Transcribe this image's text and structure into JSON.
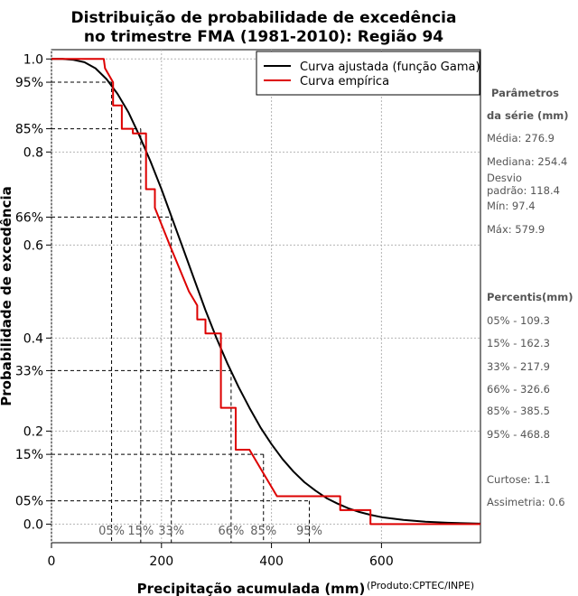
{
  "title_line1": "Distribuição de probabilidade de excedência",
  "title_line2": "no trimestre FMA (1981-2010): Região 94",
  "credit": "(Produto:CPTEC/INPE)",
  "colors": {
    "fitted": "#000000",
    "empirical": "#dd0000",
    "grid": "#b4b4b4",
    "side_text": "#555555"
  },
  "chart_data": {
    "type": "line",
    "xlabel": "Precipitação acumulada (mm)",
    "ylabel": "Probabilidade de excedência",
    "xlim": [
      0,
      780
    ],
    "ylim": [
      -0.04,
      1.02
    ],
    "x_ticks": [
      0,
      200,
      400,
      600
    ],
    "x_tick_labels": [
      "0",
      "200",
      "400",
      "600"
    ],
    "y_ticks": [
      {
        "value": 1.0,
        "label": "1.0"
      },
      {
        "value": 0.95,
        "label": "95%"
      },
      {
        "value": 0.85,
        "label": "85%"
      },
      {
        "value": 0.8,
        "label": "0.8"
      },
      {
        "value": 0.66,
        "label": "66%"
      },
      {
        "value": 0.6,
        "label": "0.6"
      },
      {
        "value": 0.4,
        "label": "0.4"
      },
      {
        "value": 0.33,
        "label": "33%"
      },
      {
        "value": 0.2,
        "label": "0.2"
      },
      {
        "value": 0.15,
        "label": "15%"
      },
      {
        "value": 0.05,
        "label": "05%"
      },
      {
        "value": 0.0,
        "label": "0.0"
      }
    ],
    "grid_x": [
      0,
      200,
      400,
      600
    ],
    "grid_y": [
      0.0,
      0.2,
      0.4,
      0.6,
      0.8,
      1.0
    ],
    "legend": {
      "position": "top-right",
      "entries": [
        {
          "label": "Curva ajustada (função Gama)",
          "series": "fitted"
        },
        {
          "label": "Curva empírica",
          "series": "empirical"
        }
      ]
    },
    "series": [
      {
        "name": "Curva ajustada (função Gama)",
        "key": "fitted",
        "x": [
          0,
          20,
          40,
          60,
          80,
          100,
          120,
          140,
          160,
          180,
          200,
          220,
          240,
          260,
          280,
          300,
          320,
          340,
          360,
          380,
          400,
          420,
          440,
          460,
          480,
          500,
          520,
          540,
          560,
          580,
          600,
          640,
          680,
          720,
          780
        ],
        "y": [
          1.0,
          1.0,
          0.998,
          0.993,
          0.98,
          0.957,
          0.925,
          0.885,
          0.835,
          0.78,
          0.72,
          0.655,
          0.59,
          0.525,
          0.46,
          0.4,
          0.345,
          0.295,
          0.25,
          0.208,
          0.172,
          0.14,
          0.113,
          0.09,
          0.072,
          0.056,
          0.044,
          0.034,
          0.026,
          0.02,
          0.015,
          0.009,
          0.005,
          0.003,
          0.001
        ]
      },
      {
        "name": "Curva empírica",
        "key": "empirical",
        "x": [
          0,
          95,
          97.4,
          112,
          112,
          128,
          128,
          148,
          148,
          172,
          172,
          188,
          188,
          215,
          250,
          265,
          265,
          280,
          280,
          308,
          308,
          335,
          335,
          360,
          380,
          410,
          425,
          425,
          525,
          525,
          548,
          548,
          580,
          580,
          780
        ],
        "y": [
          1.0,
          1.0,
          0.98,
          0.95,
          0.9,
          0.9,
          0.85,
          0.85,
          0.84,
          0.84,
          0.72,
          0.72,
          0.68,
          0.6,
          0.5,
          0.47,
          0.44,
          0.44,
          0.41,
          0.41,
          0.25,
          0.25,
          0.16,
          0.16,
          0.12,
          0.06,
          0.06,
          0.06,
          0.06,
          0.03,
          0.03,
          0.03,
          0.03,
          0.0,
          0.0
        ]
      }
    ],
    "percentile_markers": [
      {
        "label": "05%",
        "value": 109.3,
        "prob": 0.95
      },
      {
        "label": "15%",
        "value": 162.3,
        "prob": 0.85
      },
      {
        "label": "33%",
        "value": 217.9,
        "prob": 0.66
      },
      {
        "label": "66%",
        "value": 326.6,
        "prob": 0.33
      },
      {
        "label": "85%",
        "value": 385.5,
        "prob": 0.15
      },
      {
        "label": "95%",
        "value": 468.8,
        "prob": 0.05
      }
    ]
  },
  "sidebar": {
    "params_head_1": "Parâmetros",
    "params_head_2": "da série (mm)",
    "media": "Média: 276.9",
    "mediana": "Mediana: 254.4",
    "desvio_1": "Desvio",
    "desvio_2": "padrão: 118.4",
    "min": "Mín: 97.4",
    "max": "Máx: 579.9",
    "percentis_head": "Percentis(mm)",
    "percentis": [
      "05% - 109.3",
      "15% - 162.3",
      "33% - 217.9",
      "66% - 326.6",
      "85% - 385.5",
      "95% - 468.8"
    ],
    "curtose": "Curtose: 1.1",
    "assimetria": "Assimetria: 0.6"
  }
}
